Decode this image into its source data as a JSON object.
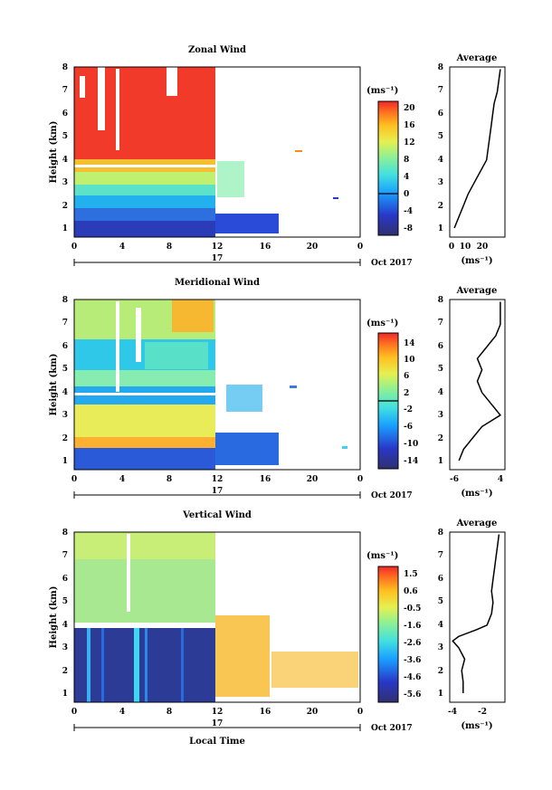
{
  "figure": {
    "date_label": "Oct 2017",
    "day_label": "17",
    "xlabel": "Local Time",
    "ylabel": "Height (km)",
    "unit_label": "(ms⁻¹)",
    "profile_title": "Average",
    "profile_xlabel": "(ms⁻¹)"
  },
  "chart_data": [
    {
      "type": "heatmap",
      "title": "Zonal Wind",
      "xlabel": "Local Time",
      "ylabel": "Height (km)",
      "x_ticks": [
        "0",
        "4",
        "8",
        "12",
        "16",
        "20",
        "0"
      ],
      "xlim": [
        0,
        24
      ],
      "y_ticks": [
        "1",
        "2",
        "3",
        "4",
        "5",
        "6",
        "7",
        "8"
      ],
      "ylim": [
        0.6,
        8.1
      ],
      "colorbar": {
        "min": -10,
        "max": 22,
        "ticks": [
          "20",
          "16",
          "12",
          "8",
          "4",
          "0",
          "-4",
          "-8"
        ]
      },
      "summary": [
        {
          "region": "0-12 LT, 4.1-8 km",
          "value": 20
        },
        {
          "region": "0-12 LT, 3-4 km",
          "value": 8
        },
        {
          "region": "0-12 LT, 0.7-2.5 km",
          "value": -6
        },
        {
          "region": "12-18 LT, 0.9-1.6 km",
          "value": -7
        }
      ],
      "average_profile": {
        "xlim": [
          -3,
          33
        ],
        "x_ticks": [
          "0",
          "10",
          "20"
        ],
        "height": [
          1.0,
          1.5,
          2.0,
          2.5,
          3.0,
          3.5,
          4.0,
          4.5,
          5.0,
          5.5,
          6.0,
          6.5,
          7.0,
          7.5,
          8.0
        ],
        "value": [
          0,
          3,
          6,
          9,
          13,
          17,
          21,
          22,
          23,
          24,
          25,
          26,
          28,
          29,
          30
        ]
      }
    },
    {
      "type": "heatmap",
      "title": "Meridional Wind",
      "xlabel": "Local Time",
      "ylabel": "Height (km)",
      "x_ticks": [
        "0",
        "4",
        "8",
        "12",
        "16",
        "20",
        "0"
      ],
      "xlim": [
        0,
        24
      ],
      "y_ticks": [
        "1",
        "2",
        "3",
        "4",
        "5",
        "6",
        "7",
        "8"
      ],
      "ylim": [
        0.6,
        8.1
      ],
      "colorbar": {
        "min": -16,
        "max": 16,
        "ticks": [
          "14",
          "10",
          "6",
          "2",
          "-2",
          "-6",
          "-10",
          "-14"
        ]
      },
      "summary": [
        {
          "region": "0-12 LT, 6.5-8 km",
          "value": 8
        },
        {
          "region": "0-12 LT, 4.5-6 km",
          "value": 4
        },
        {
          "region": "0-12 LT, 3.4-4.2 km",
          "value": -2
        },
        {
          "region": "0-12 LT, 1.5-3 km",
          "value": 6
        },
        {
          "region": "12-18 LT, 0.8-3 km",
          "value": -8
        }
      ],
      "average_profile": {
        "xlim": [
          -7,
          5
        ],
        "x_ticks": [
          "-6",
          "4"
        ],
        "height": [
          1.0,
          1.5,
          2.0,
          2.5,
          3.0,
          3.5,
          4.0,
          4.5,
          5.0,
          5.5,
          6.0,
          6.5,
          7.0,
          7.5,
          8.0
        ],
        "value": [
          -5,
          -4,
          -2,
          0,
          4,
          2,
          0,
          -1,
          0,
          -1,
          1,
          3,
          4,
          4,
          4
        ]
      }
    },
    {
      "type": "heatmap",
      "title": "Vertical Wind",
      "xlabel": "Local Time",
      "ylabel": "Height (km)",
      "x_ticks": [
        "0",
        "4",
        "8",
        "12",
        "16",
        "20",
        "0"
      ],
      "xlim": [
        0,
        24
      ],
      "y_ticks": [
        "1",
        "2",
        "3",
        "4",
        "5",
        "6",
        "7",
        "8"
      ],
      "ylim": [
        0.6,
        8.1
      ],
      "colorbar": {
        "min": -6.5,
        "max": 2,
        "ticks": [
          "1.5",
          "0.6",
          "-0.5",
          "-1.6",
          "-2.6",
          "-3.6",
          "-4.6",
          "-5.6"
        ]
      },
      "summary": [
        {
          "region": "0-12 LT, 3.9-8 km",
          "value": -1
        },
        {
          "region": "0-12 LT, 0.7-3.8 km",
          "value": -6
        },
        {
          "region": "12-24 LT, 0.7-3.5 km",
          "value": 0.8
        }
      ],
      "average_profile": {
        "xlim": [
          -4.2,
          -0.5
        ],
        "x_ticks": [
          "-4",
          "-2"
        ],
        "height": [
          1.0,
          1.5,
          2.0,
          2.5,
          3.0,
          3.3,
          3.5,
          3.8,
          4.0,
          4.5,
          5.0,
          5.5,
          6.0,
          6.5,
          7.0,
          7.5,
          8.0
        ],
        "value": [
          -3.3,
          -3.3,
          -3.4,
          -3.2,
          -3.6,
          -4.0,
          -3.6,
          -2.4,
          -1.7,
          -1.4,
          -1.3,
          -1.4,
          -1.3,
          -1.2,
          -1.1,
          -1.0,
          -0.9
        ]
      }
    }
  ]
}
